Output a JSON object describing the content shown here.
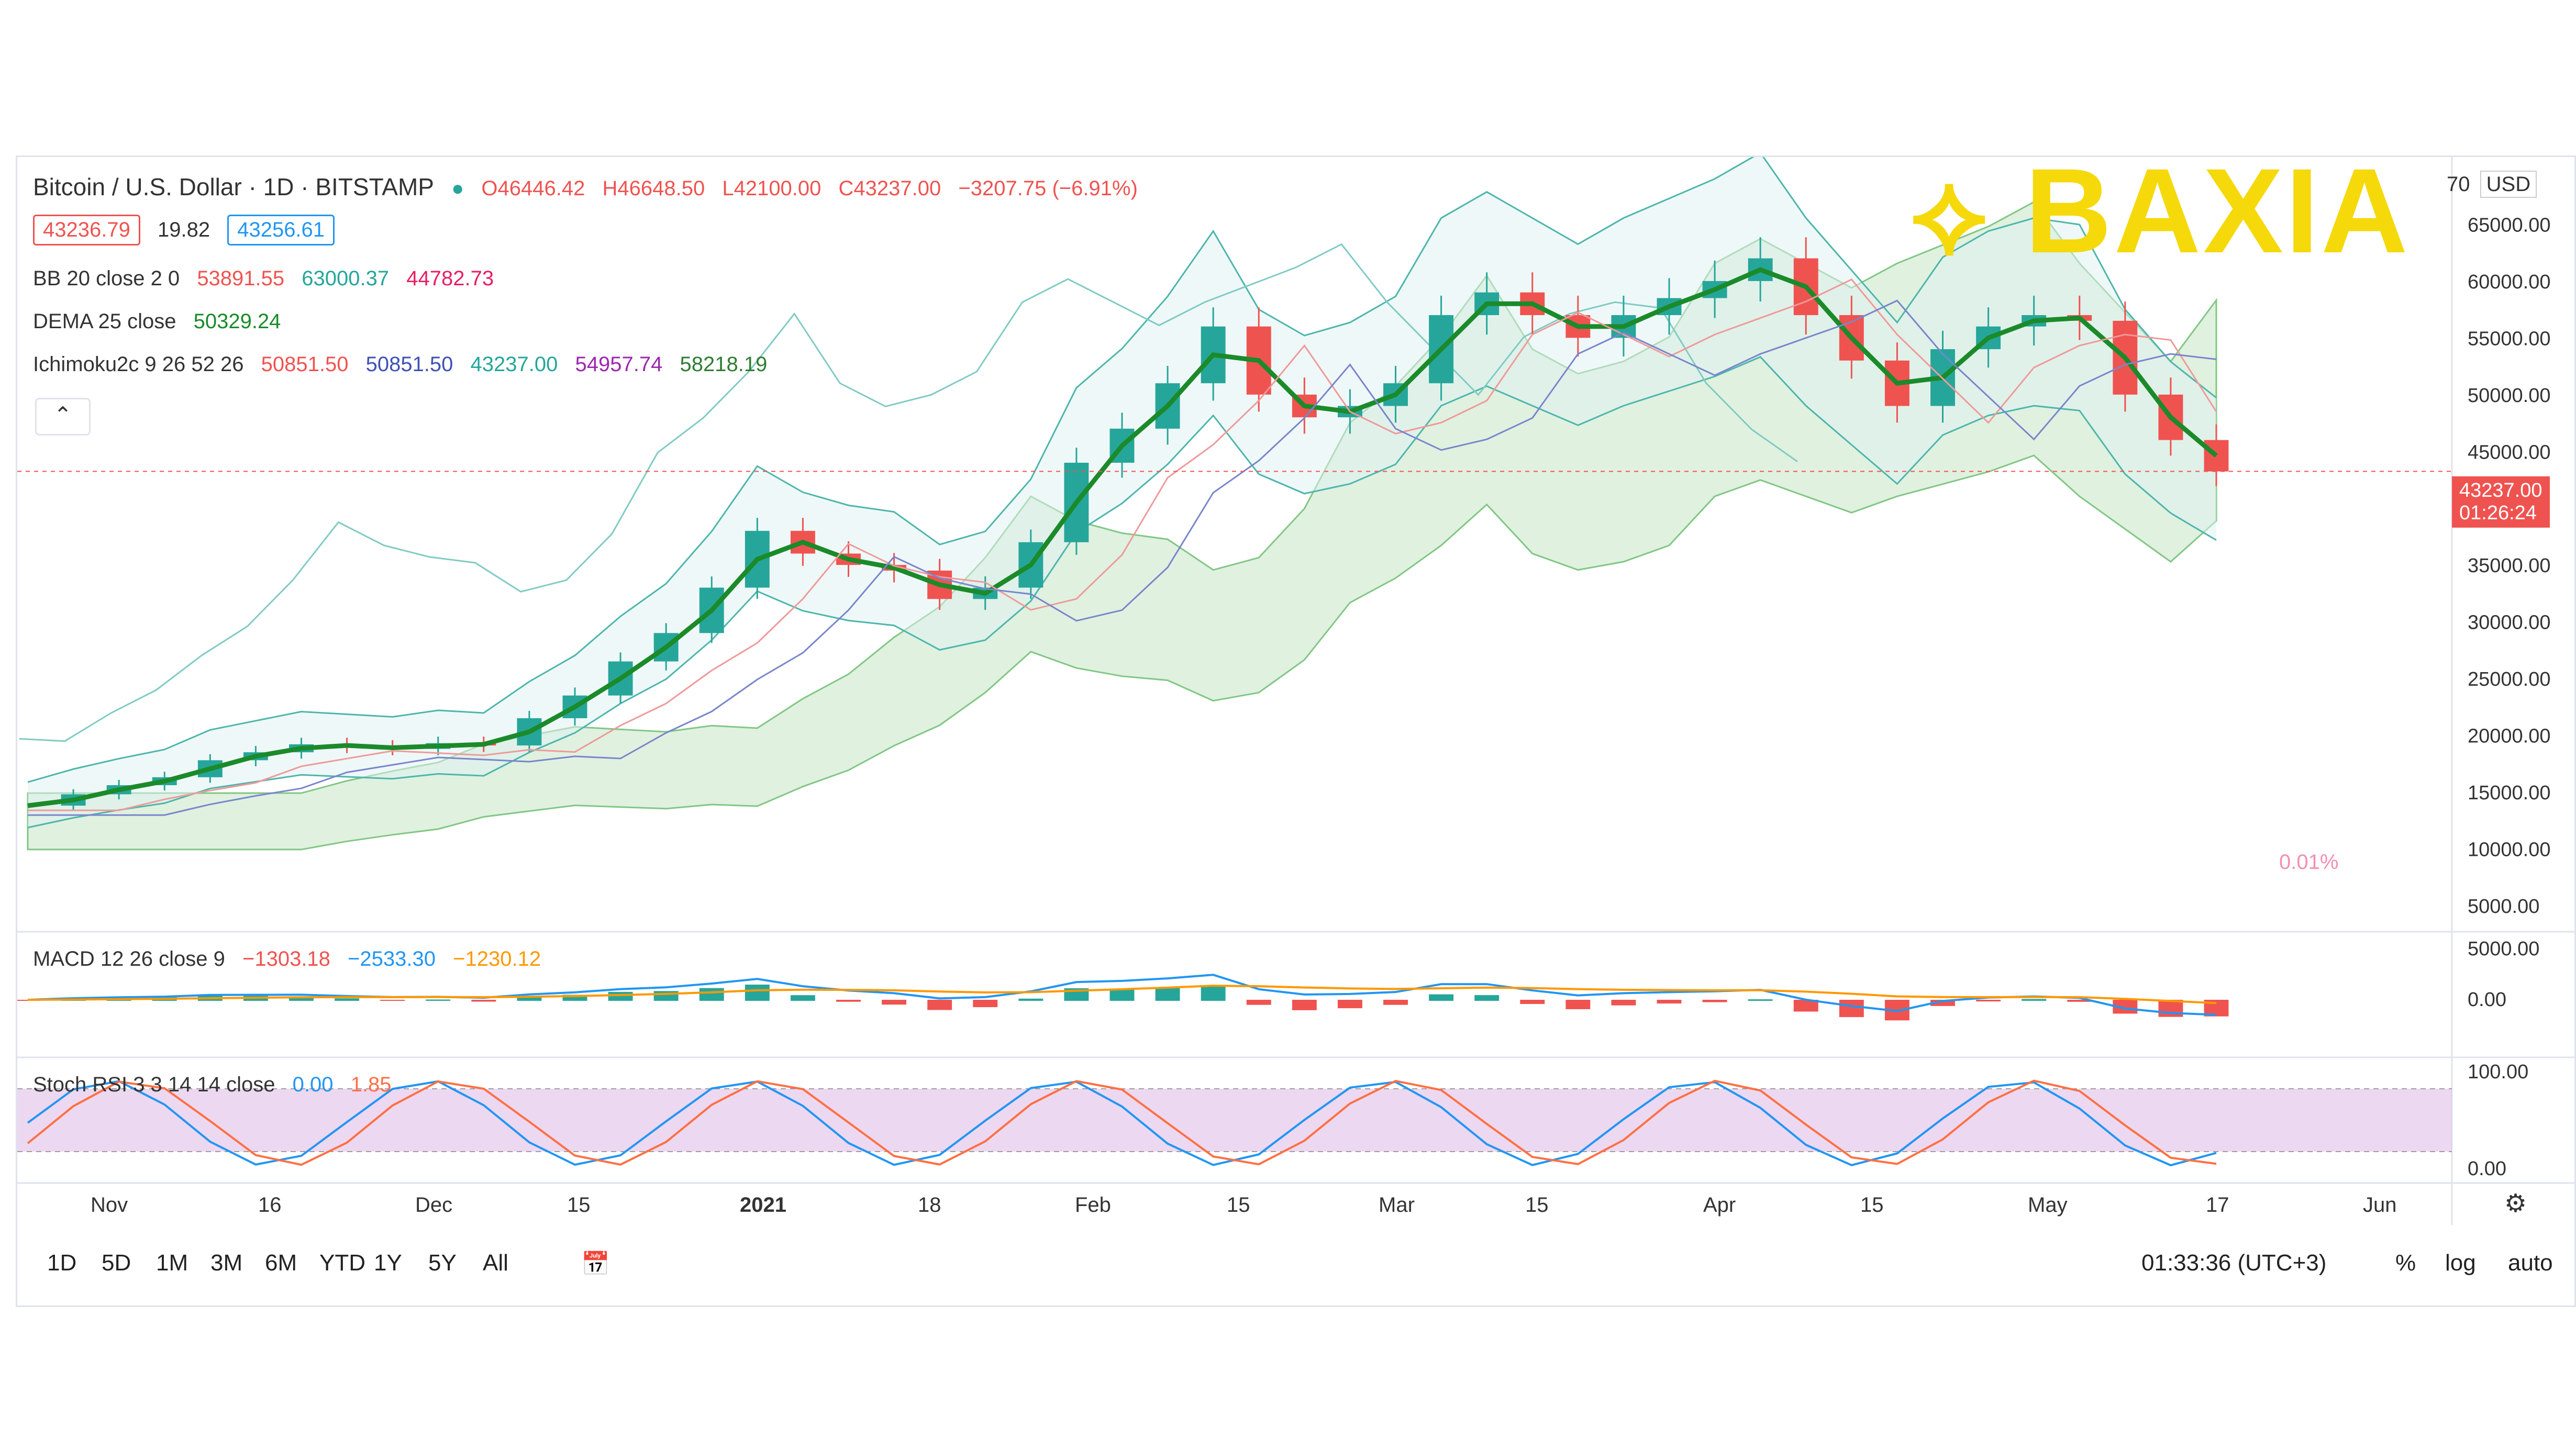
{
  "header": {
    "symbol": "Bitcoin / U.S. Dollar · 1D · BITSTAMP",
    "ohlc": {
      "o": "O46446.42",
      "h": "H46648.50",
      "l": "L42100.00",
      "c": "C43237.00",
      "chg": "−3207.75 (−6.91%)"
    },
    "bid": "43236.79",
    "spread": "19.82",
    "ask": "43256.61"
  },
  "indicators": {
    "bb": {
      "label": "BB 20 close 2 0",
      "v1": "53891.55",
      "v2": "63000.37",
      "v3": "44782.73"
    },
    "dema": {
      "label": "DEMA 25 close",
      "v1": "50329.24"
    },
    "ichimoku": {
      "label": "Ichimoku2c 9 26 52 26",
      "v1": "50851.50",
      "v2": "50851.50",
      "v3": "43237.00",
      "v4": "54957.74",
      "v5": "58218.19"
    },
    "macd": {
      "label": "MACD 12 26 close 9",
      "v1": "−1303.18",
      "v2": "−2533.30",
      "v3": "−1230.12"
    },
    "stoch": {
      "label": "Stoch RSI 3 3 14 14 close",
      "v1": "0.00",
      "v2": "1.85"
    }
  },
  "logo": "BAXIA",
  "price_tag": {
    "price": "43237.00",
    "countdown": "01:26:24"
  },
  "currency": "USD",
  "top_tick": "70",
  "low_tick_note": "0.01%",
  "bottom": {
    "ranges": [
      "1D",
      "5D",
      "1M",
      "3M",
      "6M",
      "YTD",
      "1Y",
      "5Y",
      "All"
    ],
    "clock": "01:33:36 (UTC+3)",
    "pct": "%",
    "log": "log",
    "auto": "auto"
  },
  "colors": {
    "up": "#26a69a",
    "down": "#ef5350",
    "dema": "#1b8a2a",
    "bb": "#4db6ac",
    "cloud": "#a5d6a7",
    "macd": "#2196f3",
    "signal": "#ff9800",
    "stoch_k": "#2196f3",
    "stoch_d": "#ff7043",
    "stoch_band": "#e1bee7"
  },
  "chart_data": {
    "type": "line",
    "title": "Bitcoin / U.S. Dollar · 1D · BITSTAMP",
    "x_ticks": [
      "Nov",
      "16",
      "Dec",
      "15",
      "2021",
      "18",
      "Feb",
      "15",
      "Mar",
      "15",
      "Apr",
      "15",
      "May",
      "17",
      "Jun"
    ],
    "price_ticks": [
      "65000.00",
      "60000.00",
      "55000.00",
      "50000.00",
      "45000.00",
      "35000.00",
      "30000.00",
      "25000.00",
      "20000.00",
      "15000.00",
      "10000.00",
      "5000.00"
    ],
    "ylim": [
      5000,
      70000
    ],
    "series": [
      {
        "name": "close",
        "values": [
          13800,
          14800,
          15600,
          16300,
          17800,
          18500,
          19200,
          19000,
          18800,
          19300,
          19100,
          21500,
          23500,
          26500,
          29000,
          33000,
          38000,
          36000,
          35000,
          34500,
          32000,
          33000,
          37000,
          44000,
          47000,
          51000,
          56000,
          50000,
          48000,
          49000,
          51000,
          57000,
          59000,
          57000,
          55000,
          57000,
          58500,
          60000,
          62000,
          57000,
          53000,
          49000,
          54000,
          56000,
          57000,
          56500,
          50000,
          46000,
          43237
        ]
      }
    ],
    "macd_ticks": [
      "5000.00",
      "0.00"
    ],
    "stoch_ticks": [
      "100.00",
      "0.00"
    ]
  }
}
